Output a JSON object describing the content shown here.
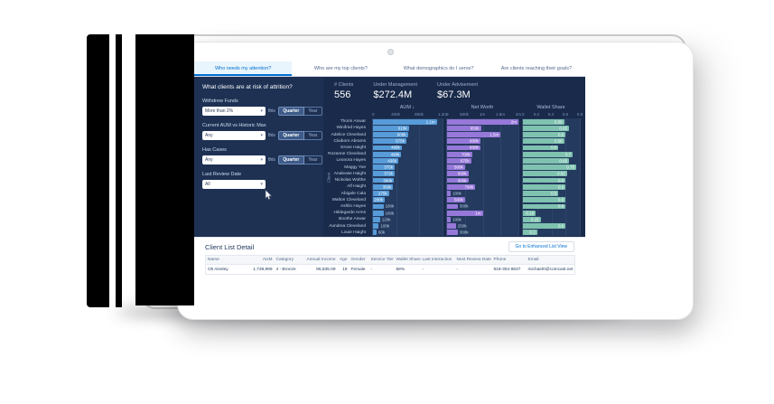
{
  "tabs": [
    {
      "label": "Who needs my attention?",
      "active": true
    },
    {
      "label": "Who are my top clients?",
      "active": false
    },
    {
      "label": "What demographics do I serve?",
      "active": false
    },
    {
      "label": "Are clients reaching their goals?",
      "active": false
    }
  ],
  "attrition_panel": {
    "title": "What clients are at risk of attrition?",
    "filters": [
      {
        "label": "Withdrew Funds",
        "value": "More than 2%",
        "conjunction": "this",
        "toggle_options": [
          "Quarter",
          "Year"
        ],
        "active_toggle": "Quarter"
      },
      {
        "label": "Current AUM vs Historic Max",
        "value": "Any",
        "conjunction": "this",
        "toggle_options": [
          "Quarter",
          "Year"
        ],
        "active_toggle": "Quarter"
      },
      {
        "label": "Has Cases",
        "value": "Any",
        "conjunction": "this",
        "toggle_options": [
          "Quarter",
          "Year"
        ],
        "active_toggle": "Quarter"
      },
      {
        "label": "Last Review Date",
        "value": "All"
      }
    ]
  },
  "kpis": [
    {
      "label": "# Clients",
      "value": "556"
    },
    {
      "label": "Under Management",
      "value": "$272.4M"
    },
    {
      "label": "Under Advisement",
      "value": "$67.3M"
    }
  ],
  "chart_data": {
    "type": "bar",
    "orientation": "horizontal",
    "axis_label": "Client",
    "legend": "none",
    "grid": true,
    "categories": [
      "Thorin Anwar",
      "Winifred Hayes",
      "Adelice Cleveland",
      "Claiborn Abrams",
      "Grove Haight",
      "Rozanne Cleveland",
      "Leonora Hayes",
      "Maggy Yoe",
      "Analease Haight",
      "Nickolas Wolthe",
      "Alf Haight",
      "Abigale Cala",
      "Walton Cleveland",
      "Ashlin Hayes",
      "Hildegarde Arms",
      "Boothe Anwar",
      "Aundrea Cleveland",
      "Louie Haight"
    ],
    "series": [
      {
        "name": "AUM",
        "sorted": "desc",
        "xmax": 1200,
        "unit": "thousands",
        "tick_labels": [
          "0",
          "400k",
          "800k",
          "1.2m"
        ],
        "color": "#579bd8",
        "values": [
          1100,
          618,
          600,
          575,
          495,
          490,
          436,
          375,
          372,
          360,
          350,
          275,
          200,
          180,
          180,
          120,
          100,
          60
        ],
        "value_labels": [
          "1.1m",
          "618k",
          "600k",
          "575k",
          "495k",
          "490k",
          "436k",
          "375k",
          "372k",
          "360k",
          "350k",
          "275k",
          "200k",
          "180k",
          "180k",
          "120k",
          "100k",
          "60k"
        ]
      },
      {
        "name": "Net Worth",
        "sorted": "none",
        "xmax": 2000,
        "unit": "thousands",
        "tick_labels": [
          "0",
          "500k",
          "1m",
          "1.5m",
          "2m"
        ],
        "color": "#9678d9",
        "values": [
          2000,
          950,
          1500,
          930,
          930,
          700,
          675,
          500,
          600,
          600,
          790,
          100,
          500,
          300,
          1000,
          100,
          250,
          300
        ],
        "value_labels": [
          "2m",
          "950k",
          "1.5m",
          "930k",
          "930k",
          "700k",
          "675k",
          "500k",
          "600k",
          "600k",
          "790k",
          "100k",
          "500k",
          "300k",
          "1m",
          "100k",
          "250k",
          "300k"
        ]
      },
      {
        "name": "Wallet Share",
        "sorted": "none",
        "xmax": 0.8,
        "unit": "ratio",
        "tick_labels": [
          "0",
          "0.2",
          "0.4",
          "0.6",
          "0.8"
        ],
        "color": "#7fc2b0",
        "values": [
          0.58,
          0.65,
          0.6,
          0.58,
          0.5,
          0.7,
          0.65,
          0.75,
          0.62,
          0.6,
          0.6,
          0.5,
          0.6,
          0.6,
          0.18,
          0.25,
          0.6,
          0.2
        ],
        "value_labels": [
          "0.58",
          "0.65",
          "0.6",
          "0.58",
          "0.5",
          "0.7",
          "0.65",
          "0.75",
          "0.62",
          "0.6",
          "0.6",
          "0.5",
          "0.6",
          "0.6",
          "0.18",
          "0.25",
          "0.6",
          "0.2"
        ]
      }
    ]
  },
  "table": {
    "title": "Client List Detail",
    "action_label": "Go to Enhanced List View",
    "columns": [
      {
        "label": "Name",
        "align": "left"
      },
      {
        "label": "AUM",
        "align": "right"
      },
      {
        "label": "Category",
        "align": "left"
      },
      {
        "label": "Annual Income",
        "align": "right"
      },
      {
        "label": "Age",
        "align": "right"
      },
      {
        "label": "Gender",
        "align": "left"
      },
      {
        "label": "Service Tier",
        "align": "left"
      },
      {
        "label": "Wallet Share",
        "align": "left"
      },
      {
        "label": "Last Interaction",
        "align": "left"
      },
      {
        "label": "Next Review Date",
        "align": "left"
      },
      {
        "label": "Phone",
        "align": "left"
      },
      {
        "label": "Email",
        "align": "left"
      }
    ],
    "rows": [
      [
        "Oti Ainsley",
        "1,739,999",
        "4 - Bronze",
        "86,535.09",
        "18",
        "Female",
        "-",
        "58%",
        "-",
        "-",
        "818-304-9637",
        "michael0@comcast.net"
      ]
    ]
  },
  "icons": {
    "select_chevron": "▾",
    "sort_desc": "↓"
  }
}
